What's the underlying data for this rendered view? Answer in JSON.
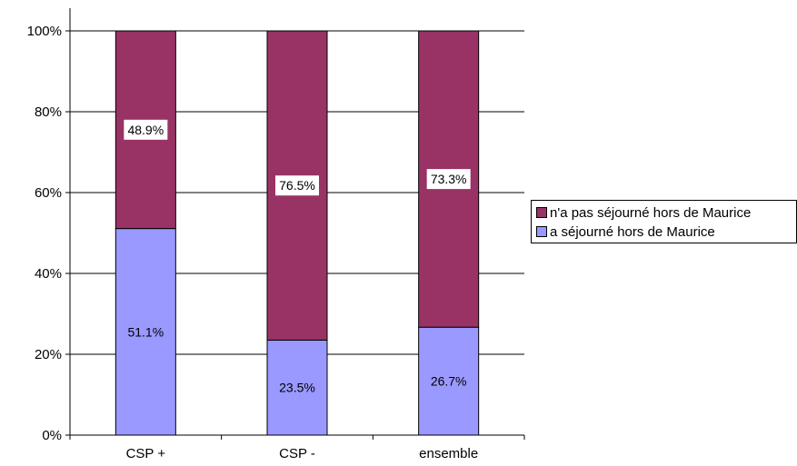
{
  "chart_data": {
    "type": "bar",
    "stacked": true,
    "percent": true,
    "categories": [
      "CSP +",
      "CSP -",
      "ensemble"
    ],
    "series": [
      {
        "name": "a séjourné hors de Maurice",
        "values": [
          51.1,
          23.5,
          26.7
        ],
        "color": "#9999ff",
        "labels": [
          "51.1%",
          "23.5%",
          "26.7%"
        ]
      },
      {
        "name": "n'a pas séjourné hors de Maurice",
        "values": [
          48.9,
          76.5,
          73.3
        ],
        "color": "#993366",
        "labels": [
          "48.9%",
          "76.5%",
          "73.3%"
        ]
      }
    ],
    "ylim": [
      0,
      100
    ],
    "yticks": [
      "0%",
      "20%",
      "40%",
      "60%",
      "80%",
      "100%"
    ],
    "grid": true,
    "legend_position": "right",
    "title": "",
    "xlabel": "",
    "ylabel": ""
  }
}
